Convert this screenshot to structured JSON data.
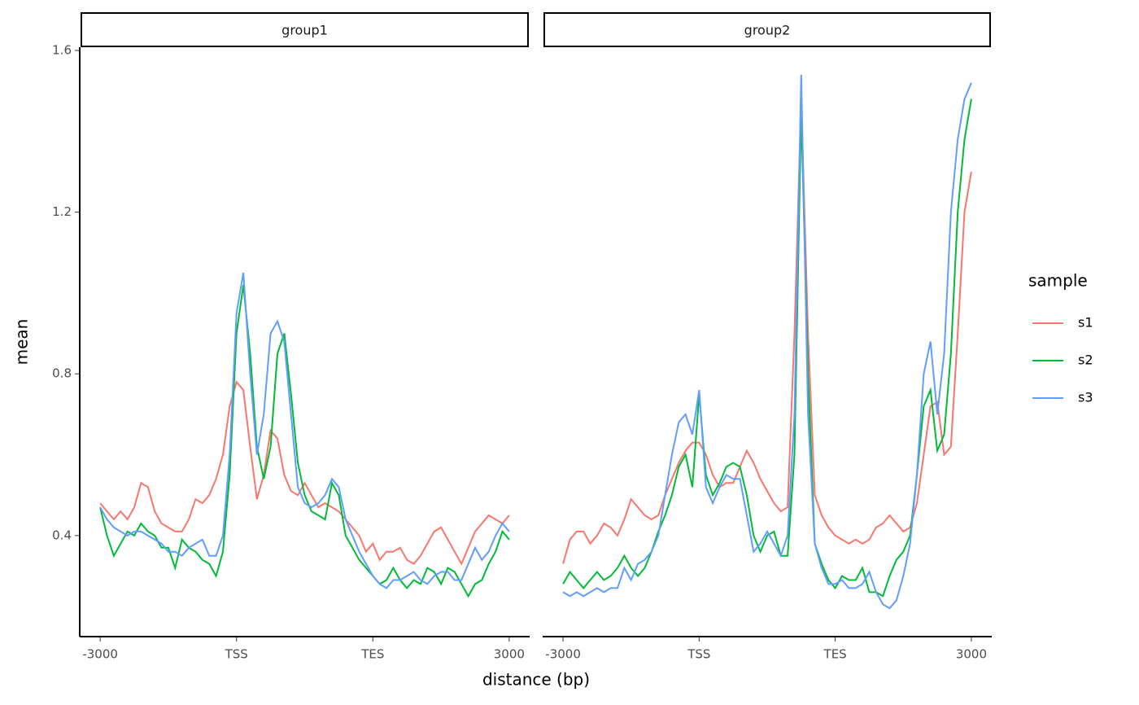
{
  "shared": {
    "xlabel": "distance (bp)",
    "ylabel": "mean",
    "legend_title": "sample"
  },
  "chart_data": [
    {
      "type": "line",
      "title": "group1",
      "x": [
        0,
        1,
        2,
        3,
        4,
        5,
        6,
        7,
        8,
        9,
        10,
        11,
        12,
        13,
        14,
        15,
        16,
        17,
        18,
        19,
        20,
        21,
        22,
        23,
        24,
        25,
        26,
        27,
        28,
        29,
        30,
        31,
        32,
        33,
        34,
        35,
        36,
        37,
        38,
        39,
        40,
        41,
        42,
        43,
        44,
        45,
        46,
        47,
        48,
        49,
        50,
        51,
        52,
        53,
        54,
        55,
        56,
        57,
        58,
        59,
        60
      ],
      "xlim": [
        -3,
        63
      ],
      "xticks": [
        {
          "value": 0,
          "label": "-3000"
        },
        {
          "value": 20,
          "label": "TSS"
        },
        {
          "value": 40,
          "label": "TES"
        },
        {
          "value": 60,
          "label": "3000"
        }
      ],
      "ylim": [
        0.15,
        1.608
      ],
      "yticks": [
        0.4,
        0.8,
        1.2,
        1.6
      ],
      "series": [
        {
          "name": "s1",
          "color": "#f8766d",
          "values": [
            0.48,
            0.46,
            0.44,
            0.46,
            0.44,
            0.47,
            0.53,
            0.52,
            0.46,
            0.43,
            0.42,
            0.41,
            0.41,
            0.44,
            0.49,
            0.48,
            0.5,
            0.54,
            0.6,
            0.72,
            0.78,
            0.76,
            0.62,
            0.49,
            0.55,
            0.66,
            0.64,
            0.55,
            0.51,
            0.5,
            0.53,
            0.5,
            0.47,
            0.48,
            0.47,
            0.46,
            0.44,
            0.42,
            0.4,
            0.36,
            0.38,
            0.34,
            0.36,
            0.36,
            0.37,
            0.34,
            0.33,
            0.35,
            0.38,
            0.41,
            0.42,
            0.39,
            0.36,
            0.33,
            0.37,
            0.41,
            0.43,
            0.45,
            0.44,
            0.43,
            0.45
          ]
        },
        {
          "name": "s2",
          "color": "#00ba38",
          "values": [
            0.47,
            0.4,
            0.35,
            0.38,
            0.41,
            0.4,
            0.43,
            0.41,
            0.4,
            0.37,
            0.37,
            0.32,
            0.39,
            0.37,
            0.36,
            0.34,
            0.33,
            0.3,
            0.36,
            0.55,
            0.9,
            1.02,
            0.85,
            0.62,
            0.54,
            0.62,
            0.85,
            0.9,
            0.75,
            0.58,
            0.5,
            0.46,
            0.45,
            0.44,
            0.53,
            0.5,
            0.4,
            0.37,
            0.34,
            0.32,
            0.3,
            0.28,
            0.29,
            0.32,
            0.29,
            0.27,
            0.29,
            0.28,
            0.32,
            0.31,
            0.28,
            0.32,
            0.31,
            0.28,
            0.25,
            0.28,
            0.29,
            0.33,
            0.36,
            0.41,
            0.39
          ]
        },
        {
          "name": "s3",
          "color": "#619cff",
          "values": [
            0.47,
            0.44,
            0.42,
            0.41,
            0.4,
            0.41,
            0.41,
            0.4,
            0.39,
            0.38,
            0.36,
            0.36,
            0.35,
            0.37,
            0.38,
            0.39,
            0.35,
            0.35,
            0.4,
            0.6,
            0.95,
            1.05,
            0.8,
            0.6,
            0.7,
            0.9,
            0.93,
            0.88,
            0.7,
            0.52,
            0.48,
            0.47,
            0.48,
            0.5,
            0.54,
            0.52,
            0.44,
            0.4,
            0.36,
            0.33,
            0.3,
            0.28,
            0.27,
            0.29,
            0.29,
            0.3,
            0.31,
            0.29,
            0.28,
            0.3,
            0.31,
            0.31,
            0.29,
            0.29,
            0.33,
            0.37,
            0.34,
            0.36,
            0.4,
            0.43,
            0.41
          ]
        }
      ]
    },
    {
      "type": "line",
      "title": "group2",
      "x": [
        0,
        1,
        2,
        3,
        4,
        5,
        6,
        7,
        8,
        9,
        10,
        11,
        12,
        13,
        14,
        15,
        16,
        17,
        18,
        19,
        20,
        21,
        22,
        23,
        24,
        25,
        26,
        27,
        28,
        29,
        30,
        31,
        32,
        33,
        34,
        35,
        36,
        37,
        38,
        39,
        40,
        41,
        42,
        43,
        44,
        45,
        46,
        47,
        48,
        49,
        50,
        51,
        52,
        53,
        54,
        55,
        56,
        57,
        58,
        59,
        60
      ],
      "xlim": [
        -3,
        63
      ],
      "xticks": [
        {
          "value": 0,
          "label": "-3000"
        },
        {
          "value": 20,
          "label": "TSS"
        },
        {
          "value": 40,
          "label": "TES"
        },
        {
          "value": 60,
          "label": "3000"
        }
      ],
      "ylim": [
        0.15,
        1.608
      ],
      "series": [
        {
          "name": "s1",
          "color": "#f8766d",
          "values": [
            0.33,
            0.39,
            0.41,
            0.41,
            0.38,
            0.4,
            0.43,
            0.42,
            0.4,
            0.44,
            0.49,
            0.47,
            0.45,
            0.44,
            0.45,
            0.5,
            0.54,
            0.58,
            0.61,
            0.63,
            0.63,
            0.6,
            0.55,
            0.52,
            0.53,
            0.53,
            0.57,
            0.61,
            0.58,
            0.54,
            0.51,
            0.48,
            0.46,
            0.47,
            0.9,
            1.48,
            0.9,
            0.5,
            0.45,
            0.42,
            0.4,
            0.39,
            0.38,
            0.39,
            0.38,
            0.39,
            0.42,
            0.43,
            0.45,
            0.43,
            0.41,
            0.42,
            0.48,
            0.6,
            0.72,
            0.73,
            0.6,
            0.62,
            0.9,
            1.2,
            1.3
          ]
        },
        {
          "name": "s2",
          "color": "#00ba38",
          "values": [
            0.28,
            0.31,
            0.29,
            0.27,
            0.29,
            0.31,
            0.29,
            0.3,
            0.32,
            0.35,
            0.32,
            0.3,
            0.32,
            0.36,
            0.41,
            0.45,
            0.5,
            0.57,
            0.6,
            0.52,
            0.75,
            0.55,
            0.5,
            0.53,
            0.57,
            0.58,
            0.57,
            0.5,
            0.4,
            0.36,
            0.4,
            0.41,
            0.35,
            0.35,
            0.6,
            1.45,
            0.8,
            0.38,
            0.33,
            0.29,
            0.27,
            0.3,
            0.29,
            0.29,
            0.32,
            0.26,
            0.26,
            0.25,
            0.3,
            0.34,
            0.36,
            0.4,
            0.55,
            0.72,
            0.76,
            0.61,
            0.65,
            0.85,
            1.2,
            1.38,
            1.48
          ]
        },
        {
          "name": "s3",
          "color": "#619cff",
          "values": [
            0.26,
            0.25,
            0.26,
            0.25,
            0.26,
            0.27,
            0.26,
            0.27,
            0.27,
            0.32,
            0.29,
            0.33,
            0.34,
            0.36,
            0.4,
            0.5,
            0.6,
            0.68,
            0.7,
            0.65,
            0.76,
            0.52,
            0.48,
            0.52,
            0.55,
            0.54,
            0.54,
            0.45,
            0.36,
            0.38,
            0.41,
            0.38,
            0.35,
            0.4,
            0.7,
            1.54,
            0.7,
            0.38,
            0.32,
            0.28,
            0.28,
            0.29,
            0.27,
            0.27,
            0.28,
            0.31,
            0.26,
            0.23,
            0.22,
            0.24,
            0.3,
            0.38,
            0.55,
            0.8,
            0.88,
            0.7,
            0.85,
            1.2,
            1.38,
            1.48,
            1.52
          ]
        }
      ]
    }
  ]
}
